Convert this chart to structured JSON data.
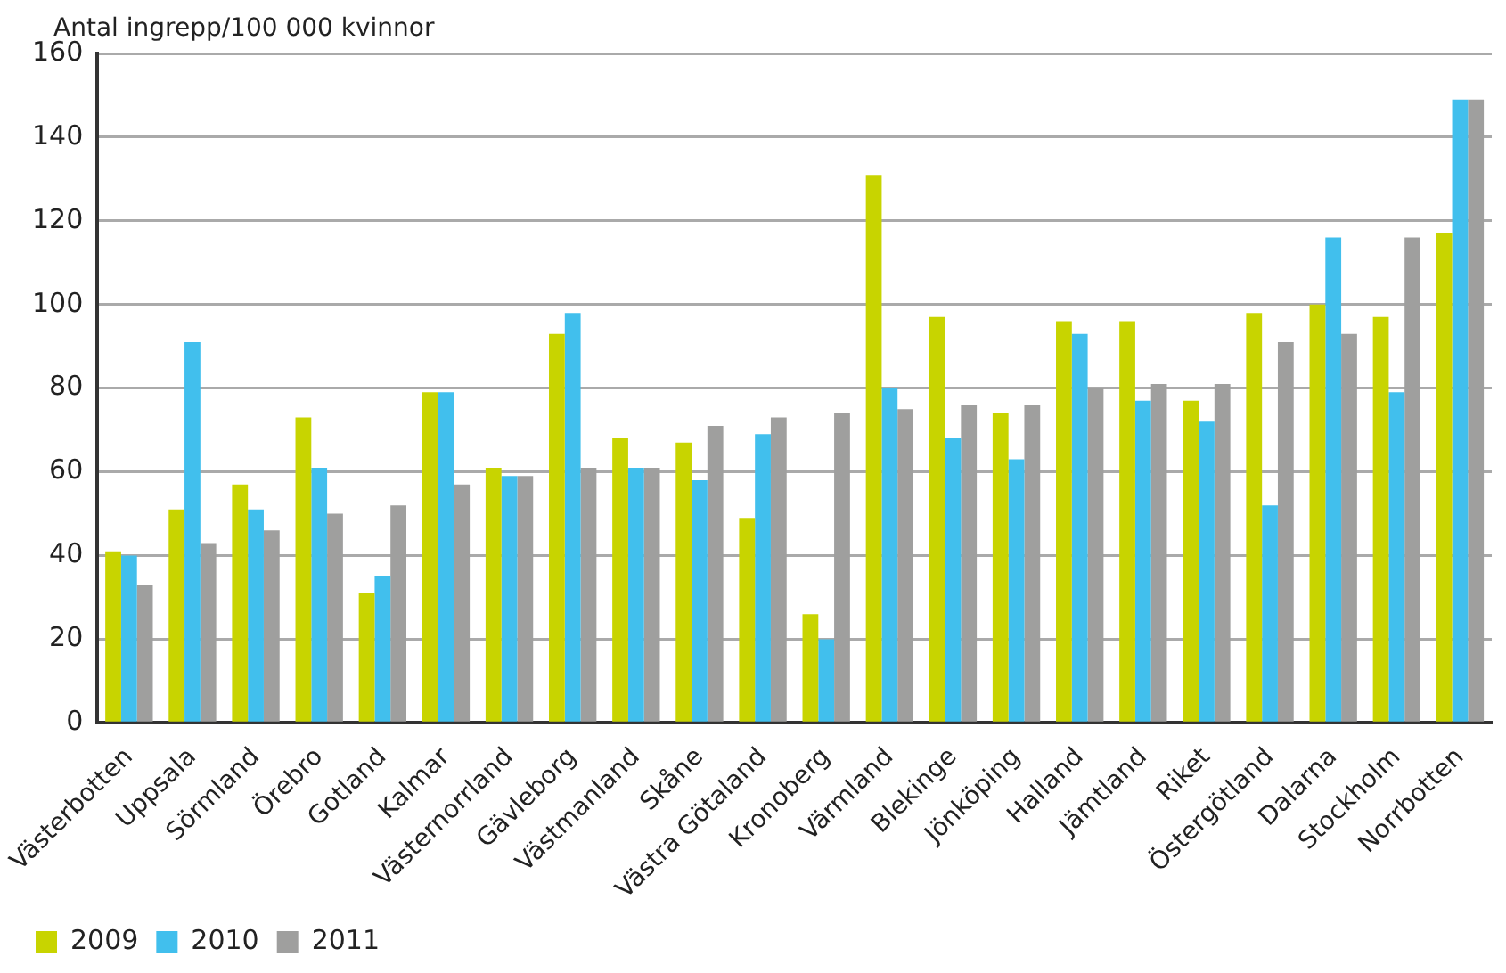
{
  "chart_data": {
    "type": "bar",
    "ylabel": "Antal ingrepp/100 000 kvinnor",
    "categories": [
      "Västerbotten",
      "Uppsala",
      "Sörmland",
      "Örebro",
      "Gotland",
      "Kalmar",
      "Västernorrland",
      "Gävleborg",
      "Västmanland",
      "Skåne",
      "Västra Götaland",
      "Kronoberg",
      "Värmland",
      "Blekinge",
      "Jönköping",
      "Halland",
      "Jämtland",
      "Riket",
      "Östergötland",
      "Dalarna",
      "Stockholm",
      "Norrbotten"
    ],
    "series": [
      {
        "name": "2009",
        "color": "#c8d400",
        "values": [
          41,
          51,
          57,
          73,
          31,
          79,
          61,
          93,
          68,
          67,
          49,
          26,
          131,
          97,
          74,
          96,
          96,
          77,
          98,
          100,
          97,
          117
        ]
      },
      {
        "name": "2010",
        "color": "#41bfed",
        "values": [
          40,
          91,
          51,
          61,
          35,
          79,
          59,
          98,
          61,
          58,
          69,
          20,
          80,
          68,
          63,
          93,
          77,
          72,
          52,
          116,
          79,
          149
        ]
      },
      {
        "name": "2011",
        "color": "#9f9f9e",
        "values": [
          33,
          43,
          46,
          50,
          52,
          57,
          59,
          61,
          61,
          71,
          73,
          74,
          75,
          76,
          76,
          80,
          81,
          81,
          91,
          93,
          116,
          149
        ]
      }
    ],
    "ylim": [
      0,
      160
    ],
    "yticks": [
      0,
      20,
      40,
      60,
      80,
      100,
      120,
      140,
      160
    ],
    "grid": "y",
    "legend": "bottom left"
  }
}
